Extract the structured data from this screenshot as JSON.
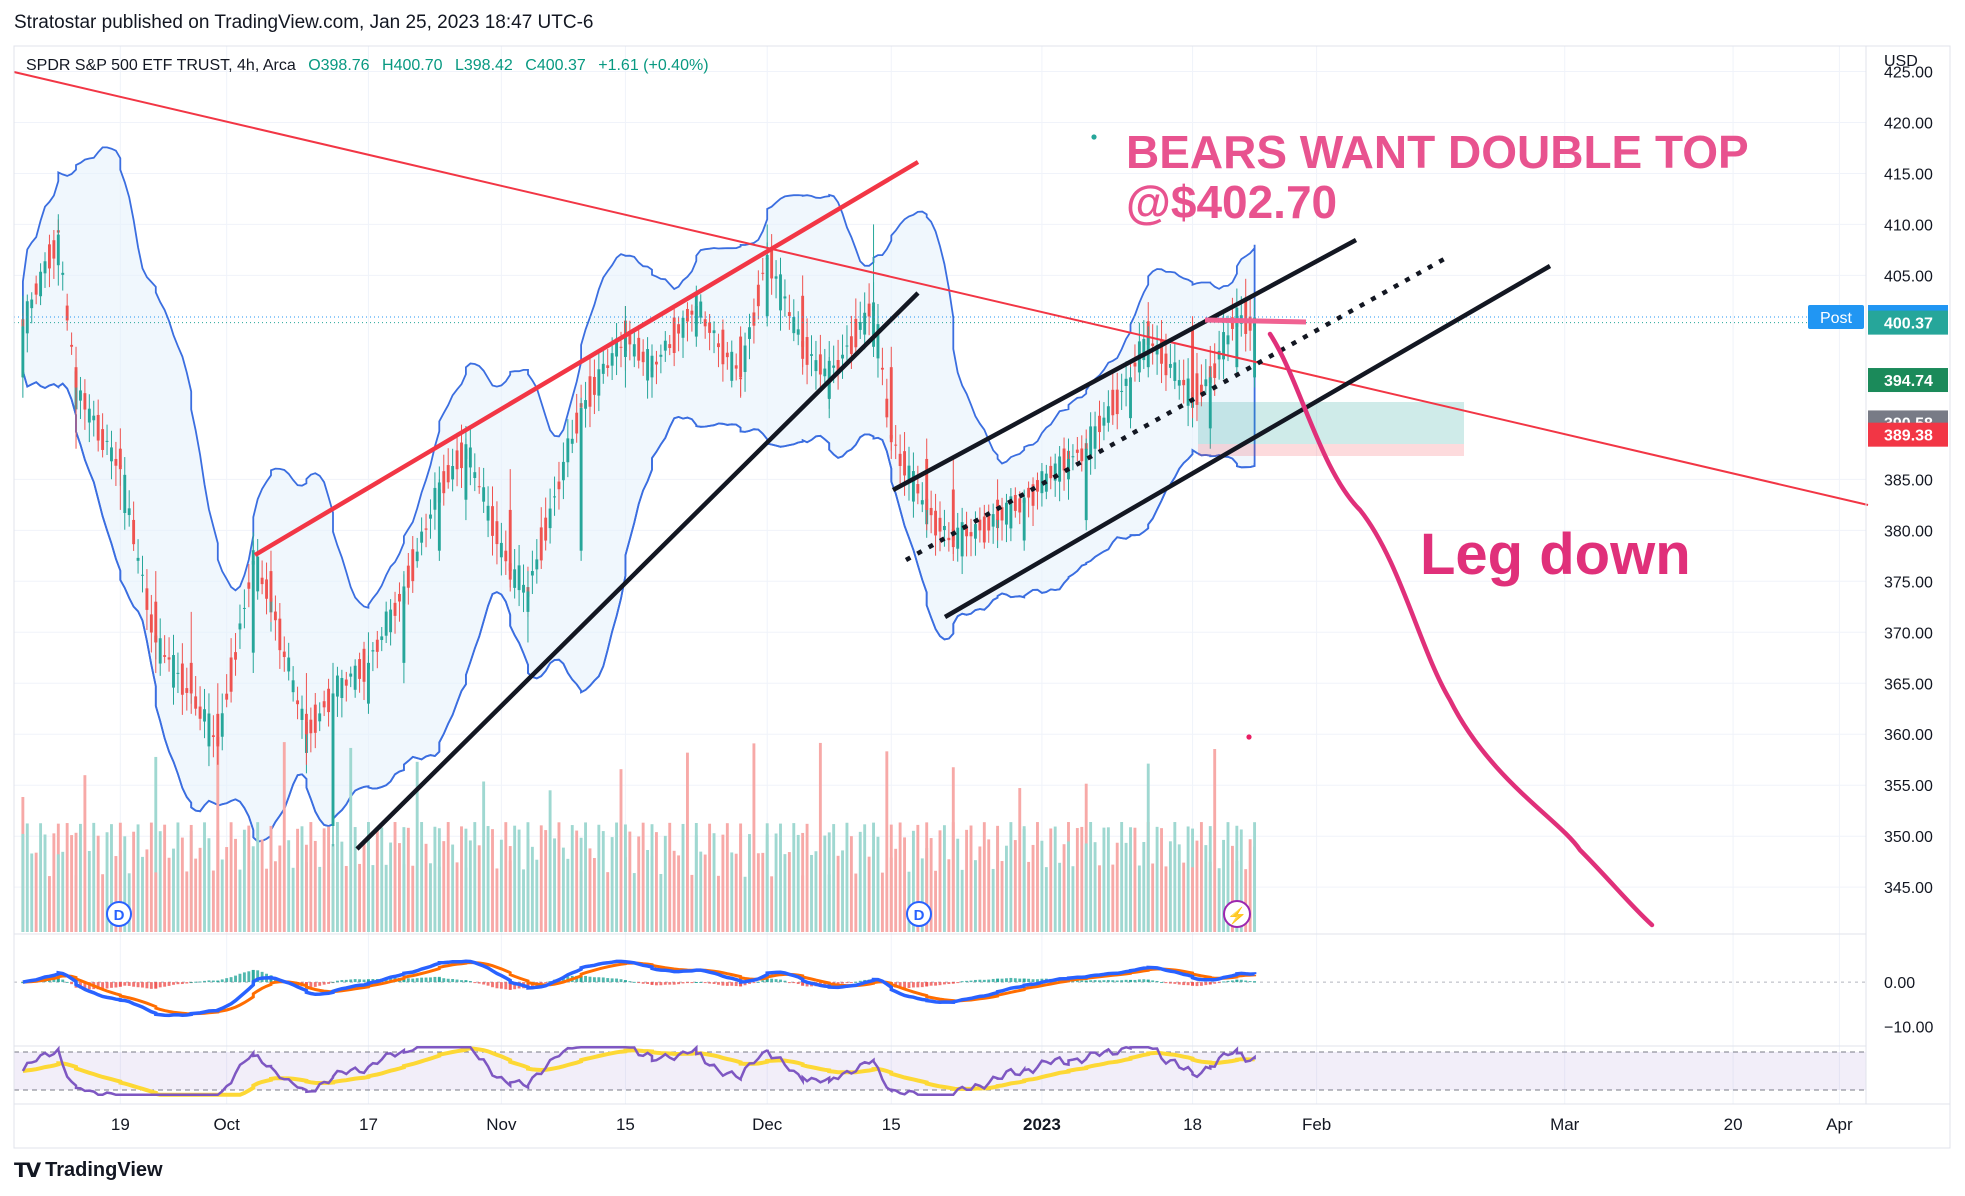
{
  "header": {
    "published": "Stratostar published on TradingView.com, Jan 25, 2023 18:47 UTC-6"
  },
  "footer": {
    "brand": "TradingView",
    "logo_icon": "tradingview-logo-icon"
  },
  "chart_data": {
    "type": "candlestick",
    "symbol_line": {
      "name": "SPDR S&P 500 ETF TRUST, 4h, Arca",
      "open": "O398.76",
      "high": "H400.70",
      "low": "L398.42",
      "close": "C400.37",
      "change": "+1.61 (+0.40%)"
    },
    "currency": "USD",
    "y_ticks": [
      "425.00",
      "420.00",
      "415.00",
      "410.00",
      "405.00",
      "385.00",
      "380.00",
      "375.00",
      "370.00",
      "365.00",
      "360.00",
      "355.00",
      "350.00",
      "345.00"
    ],
    "y_range": [
      340.8,
      427.5
    ],
    "price_labels": [
      {
        "label": "Post",
        "value": "400.92",
        "price": 400.92,
        "color": "#2196f3"
      },
      {
        "label": "",
        "value": "400.37",
        "price": 400.37,
        "color": "#26a69a"
      },
      {
        "label": "",
        "value": "394.74",
        "price": 394.74,
        "color": "#1b8a5a"
      },
      {
        "label": "",
        "value": "390.58",
        "price": 390.58,
        "color": "#787b86"
      },
      {
        "label": "",
        "value": "389.38",
        "price": 389.38,
        "color": "#f23645"
      }
    ],
    "x_ticks": [
      "19",
      "Oct",
      "17",
      "Nov",
      "15",
      "Dec",
      "15",
      "2023",
      "18",
      "Feb",
      "Mar",
      "20",
      "Apr"
    ],
    "x_tick_dates": [
      "2022-09-19",
      "2022-10-01",
      "2022-10-17",
      "2022-11-01",
      "2022-11-15",
      "2022-12-01",
      "2022-12-15",
      "2023-01-01",
      "2023-01-18",
      "2023-02-01",
      "2023-03-01",
      "2023-03-20",
      "2023-04-01"
    ],
    "x_range": [
      "2022-09-07",
      "2023-04-04"
    ],
    "last_close": 400.37,
    "macd": {
      "y_ticks": [
        "0.00",
        "−10.00"
      ],
      "y_tick_values": [
        0,
        -10
      ],
      "y_range": [
        -13,
        9
      ]
    },
    "rsi": {
      "band": [
        30,
        70
      ]
    },
    "event_markers": [
      "D",
      "D",
      "⚡"
    ],
    "annotations": [
      {
        "text": "BEARS WANT DOUBLE TOP",
        "color": "#e8538f"
      },
      {
        "text": "@$402.70",
        "color": "#e8538f"
      },
      {
        "text": "Leg down",
        "color": "#e0307a"
      }
    ],
    "ohlc_series": [
      {
        "date": "2022-09-08",
        "open": 395.0,
        "high": 403.0,
        "low": 393.0,
        "close": 400.0
      },
      {
        "date": "2022-09-12",
        "open": 406.0,
        "high": 411.0,
        "low": 404.0,
        "close": 409.0
      },
      {
        "date": "2022-09-14",
        "open": 396.0,
        "high": 398.0,
        "low": 388.0,
        "close": 394.0
      },
      {
        "date": "2022-09-19",
        "open": 388.0,
        "high": 390.0,
        "low": 382.0,
        "close": 386.0
      },
      {
        "date": "2022-09-23",
        "open": 373.0,
        "high": 376.0,
        "low": 366.0,
        "close": 369.0
      },
      {
        "date": "2022-09-27",
        "open": 367.0,
        "high": 372.0,
        "low": 362.0,
        "close": 364.0
      },
      {
        "date": "2022-09-30",
        "open": 362.0,
        "high": 365.0,
        "low": 357.0,
        "close": 359.0
      },
      {
        "date": "2022-10-04",
        "open": 368.0,
        "high": 379.0,
        "low": 366.0,
        "close": 377.0
      },
      {
        "date": "2022-10-06",
        "open": 376.0,
        "high": 378.0,
        "low": 371.0,
        "close": 373.0
      },
      {
        "date": "2022-10-10",
        "open": 362.0,
        "high": 366.0,
        "low": 357.0,
        "close": 360.0
      },
      {
        "date": "2022-10-13",
        "open": 351.0,
        "high": 367.0,
        "low": 349.0,
        "close": 364.0
      },
      {
        "date": "2022-10-17",
        "open": 363.0,
        "high": 370.0,
        "low": 362.0,
        "close": 367.0
      },
      {
        "date": "2022-10-21",
        "open": 367.0,
        "high": 376.0,
        "low": 365.0,
        "close": 374.0
      },
      {
        "date": "2022-10-25",
        "open": 378.0,
        "high": 385.0,
        "low": 377.0,
        "close": 384.0
      },
      {
        "date": "2022-10-28",
        "open": 383.0,
        "high": 389.0,
        "low": 381.0,
        "close": 388.0
      },
      {
        "date": "2022-11-02",
        "open": 382.0,
        "high": 386.0,
        "low": 374.0,
        "close": 376.0
      },
      {
        "date": "2022-11-04",
        "open": 372.0,
        "high": 376.0,
        "low": 369.0,
        "close": 374.0
      },
      {
        "date": "2022-11-10",
        "open": 378.0,
        "high": 393.0,
        "low": 377.0,
        "close": 392.0
      },
      {
        "date": "2022-11-15",
        "open": 397.0,
        "high": 402.0,
        "low": 394.0,
        "close": 399.0
      },
      {
        "date": "2022-11-18",
        "open": 395.0,
        "high": 398.0,
        "low": 393.0,
        "close": 396.0
      },
      {
        "date": "2022-11-23",
        "open": 399.0,
        "high": 403.0,
        "low": 398.0,
        "close": 402.0
      },
      {
        "date": "2022-11-28",
        "open": 399.0,
        "high": 400.0,
        "low": 393.0,
        "close": 395.0
      },
      {
        "date": "2022-12-01",
        "open": 401.0,
        "high": 410.0,
        "low": 400.0,
        "close": 407.0
      },
      {
        "date": "2022-12-05",
        "open": 403.0,
        "high": 405.0,
        "low": 396.0,
        "close": 398.0
      },
      {
        "date": "2022-12-08",
        "open": 393.0,
        "high": 397.0,
        "low": 391.0,
        "close": 395.0
      },
      {
        "date": "2022-12-13",
        "open": 398.0,
        "high": 410.0,
        "low": 397.0,
        "close": 402.0
      },
      {
        "date": "2022-12-15",
        "open": 396.0,
        "high": 398.0,
        "low": 387.0,
        "close": 389.0
      },
      {
        "date": "2022-12-19",
        "open": 387.0,
        "high": 389.0,
        "low": 380.0,
        "close": 382.0
      },
      {
        "date": "2022-12-22",
        "open": 384.0,
        "high": 387.0,
        "low": 377.0,
        "close": 379.0
      },
      {
        "date": "2022-12-27",
        "open": 383.0,
        "high": 385.0,
        "low": 379.0,
        "close": 381.0
      },
      {
        "date": "2022-12-30",
        "open": 379.0,
        "high": 384.0,
        "low": 378.0,
        "close": 383.0
      },
      {
        "date": "2023-01-04",
        "open": 385.0,
        "high": 389.0,
        "low": 383.0,
        "close": 387.0
      },
      {
        "date": "2023-01-06",
        "open": 381.0,
        "high": 389.0,
        "low": 380.0,
        "close": 388.0
      },
      {
        "date": "2023-01-11",
        "open": 391.0,
        "high": 396.0,
        "low": 390.0,
        "close": 395.0
      },
      {
        "date": "2023-01-13",
        "open": 396.0,
        "high": 400.0,
        "low": 395.0,
        "close": 399.0
      },
      {
        "date": "2023-01-18",
        "open": 400.0,
        "high": 401.0,
        "low": 391.0,
        "close": 393.0
      },
      {
        "date": "2023-01-20",
        "open": 390.0,
        "high": 396.0,
        "low": 388.0,
        "close": 395.0
      },
      {
        "date": "2023-01-23",
        "open": 396.0,
        "high": 402.0,
        "low": 395.0,
        "close": 401.0
      },
      {
        "date": "2023-01-25",
        "open": 395.0,
        "high": 401.0,
        "low": 394.0,
        "close": 400.4
      }
    ]
  }
}
